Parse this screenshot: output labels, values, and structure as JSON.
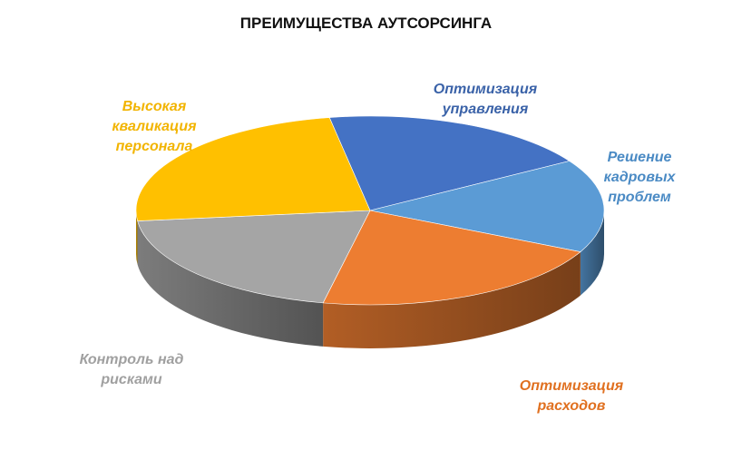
{
  "chart_data": {
    "type": "pie3d",
    "title": "ПРЕИМУЩЕСТВА АУТСОРСИНГА",
    "categories": [
      "Оптимизация\nуправления",
      "Решение\nкадровых\nпроблем",
      "Оптимизация\nрасходов",
      "Контроль над\nрисками",
      "Высокая\nкваликация\nперсонала"
    ],
    "values": [
      19,
      16,
      21,
      20,
      24
    ],
    "colors": [
      "#4472c4",
      "#5b9bd5",
      "#ed7d31",
      "#a5a5a5",
      "#ffc000"
    ]
  }
}
